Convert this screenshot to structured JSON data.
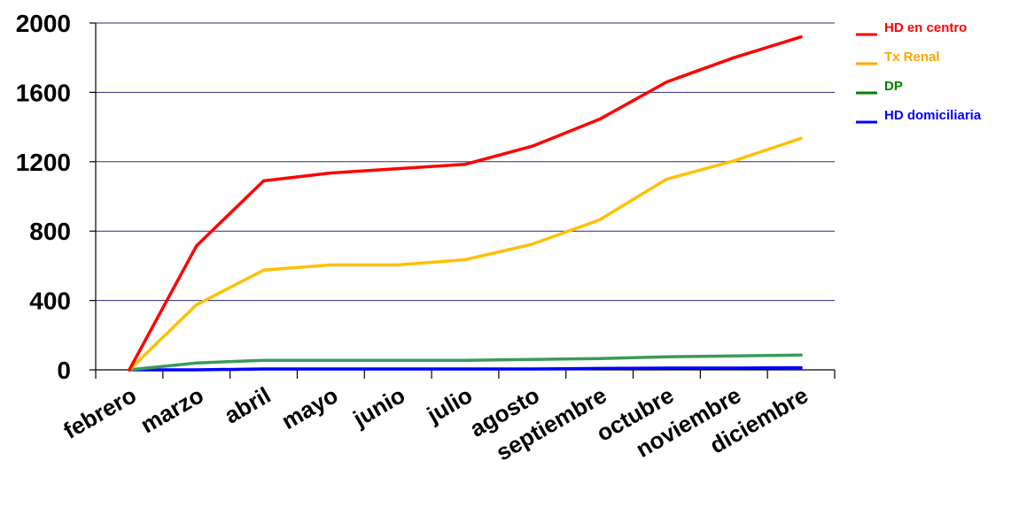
{
  "chart_data": {
    "type": "line",
    "categories": [
      "febrero",
      "marzo",
      "abril",
      "mayo",
      "junio",
      "julio",
      "agosto",
      "septiembre",
      "octubre",
      "noviembre",
      "diciembre"
    ],
    "y_ticks": [
      "0",
      "400",
      "800",
      "1200",
      "1600",
      "2000"
    ],
    "ylim": [
      0,
      2000
    ],
    "grid": "horizontal",
    "legend_position": "top-right",
    "series": [
      {
        "name": "HD en centro",
        "color": "#ff0000",
        "values": [
          0,
          715,
          1090,
          1135,
          1160,
          1185,
          1290,
          1445,
          1660,
          1800,
          1920
        ]
      },
      {
        "name": "Tx Renal",
        "color": "#ffc000",
        "values": [
          0,
          375,
          575,
          605,
          605,
          635,
          725,
          865,
          1100,
          1205,
          1335
        ]
      },
      {
        "name": "DP",
        "color": "#3c9a5a",
        "values": [
          0,
          40,
          55,
          55,
          55,
          55,
          60,
          65,
          75,
          80,
          85
        ]
      },
      {
        "name": "HD domiciliaria",
        "color": "#0000ff",
        "values": [
          0,
          0,
          5,
          5,
          5,
          5,
          5,
          8,
          10,
          10,
          12
        ]
      }
    ],
    "legend_colors": [
      "#ff0000",
      "#ffa500",
      "#008000",
      "#0000ff"
    ]
  }
}
